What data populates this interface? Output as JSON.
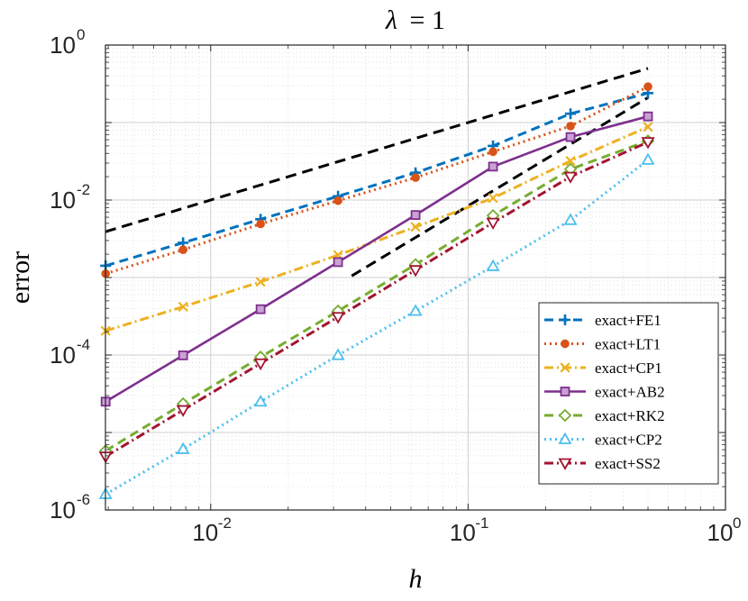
{
  "chart_data": {
    "type": "line",
    "title_prefix": "λ",
    "title_suffix": "= 1",
    "xlabel": "h",
    "ylabel": "error",
    "xscale": "log",
    "yscale": "log",
    "xlim": [
      0.0039,
      1
    ],
    "ylim": [
      1e-06,
      1
    ],
    "grid": true,
    "legend_position": "lower-right",
    "x_ticks": [
      {
        "base": "10",
        "exp": "-2",
        "value": 0.01
      },
      {
        "base": "10",
        "exp": "-1",
        "value": 0.1
      },
      {
        "base": "10",
        "exp": "0",
        "value": 1
      }
    ],
    "y_ticks": [
      {
        "base": "10",
        "exp": "-6",
        "value": 1e-06
      },
      {
        "base": "10",
        "exp": "-4",
        "value": 0.0001
      },
      {
        "base": "10",
        "exp": "-2",
        "value": 0.01
      },
      {
        "base": "10",
        "exp": "0",
        "value": 1
      }
    ],
    "x": [
      0.00390625,
      0.0078125,
      0.015625,
      0.03125,
      0.0625,
      0.125,
      0.25,
      0.5
    ],
    "series": [
      {
        "name": "exact+FE1",
        "color": "#0072BD",
        "dash": "10,6",
        "marker": "plus",
        "values": [
          0.00142,
          0.00281,
          0.00565,
          0.0112,
          0.0225,
          0.05,
          0.13,
          0.24
        ]
      },
      {
        "name": "exact+LT1",
        "color": "#D95319",
        "dash": "2,4",
        "marker": "circle",
        "values": [
          0.00112,
          0.00228,
          0.00492,
          0.0098,
          0.0195,
          0.042,
          0.09,
          0.29
        ]
      },
      {
        "name": "exact+CP1",
        "color": "#EDB120",
        "dash": "10,4,2,4",
        "marker": "x",
        "values": [
          0.000205,
          0.00042,
          0.00088,
          0.00195,
          0.0045,
          0.0106,
          0.032,
          0.088
        ]
      },
      {
        "name": "exact+AB2",
        "color": "#7E2F8E",
        "dash": "",
        "marker": "square",
        "values": [
          2.5e-05,
          9.9e-05,
          0.00039,
          0.00158,
          0.0064,
          0.027,
          0.065,
          0.12
        ]
      },
      {
        "name": "exact+RK2",
        "color": "#77AC30",
        "dash": "10,6",
        "marker": "diamond",
        "values": [
          5.8e-06,
          2.35e-05,
          9.4e-05,
          0.00037,
          0.00147,
          0.0063,
          0.025,
          0.058
        ]
      },
      {
        "name": "exact+CP2",
        "color": "#4DBEEE",
        "dash": "2,4",
        "marker": "triangle",
        "values": [
          1.6e-06,
          6.1e-06,
          2.5e-05,
          9.95e-05,
          0.00037,
          0.0014,
          0.0055,
          0.033
        ]
      },
      {
        "name": "exact+SS2",
        "color": "#A2142F",
        "dash": "10,4,2,4",
        "marker": "triangle-down",
        "values": [
          4.9e-06,
          1.95e-05,
          7.8e-05,
          0.00031,
          0.00125,
          0.0051,
          0.02,
          0.056
        ]
      }
    ],
    "reference_lines": [
      {
        "name": "slope-1-reference",
        "x": [
          0.0039,
          0.5
        ],
        "values": [
          0.0039,
          0.5
        ]
      },
      {
        "name": "slope-2-reference",
        "x": [
          0.0353,
          0.5
        ],
        "values": [
          0.00105,
          0.21
        ]
      }
    ]
  }
}
